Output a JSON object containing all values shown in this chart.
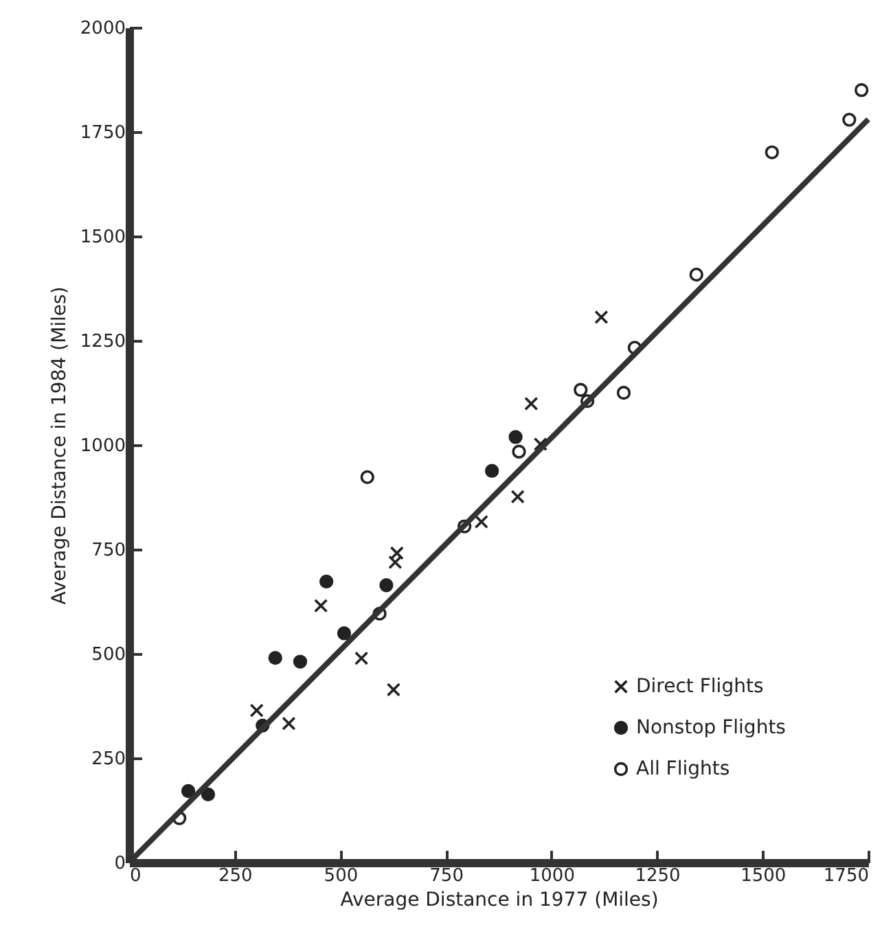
{
  "chart_data": {
    "type": "scatter",
    "xlabel": "Average Distance in 1977 (Miles)",
    "ylabel": "Average Distance in 1984 (Miles)",
    "xlim": [
      0,
      1750
    ],
    "ylim": [
      0,
      2000
    ],
    "xticks": [
      0,
      250,
      500,
      750,
      1000,
      1250,
      1500,
      1750
    ],
    "yticks": [
      0,
      250,
      500,
      750,
      1000,
      1250,
      1500,
      1750,
      2000
    ],
    "grid": false,
    "legend": "bottom right",
    "series": [
      {
        "name": "Direct Flights",
        "color": "#222222",
        "marker": "cross",
        "x": [
          302,
          378,
          454,
          550,
          626,
          630,
          634,
          834,
          920,
          952,
          974,
          1118
        ],
        "values": [
          364,
          333,
          615,
          489,
          414,
          719,
          741,
          816,
          876,
          1099,
          1002,
          1306
        ]
      },
      {
        "name": "Nonstop Flights",
        "color": "#222222",
        "marker": "circle",
        "x": [
          140,
          187,
          316,
          346,
          405,
          467,
          509,
          609,
          859,
          915
        ],
        "values": [
          171,
          163,
          328,
          490,
          481,
          673,
          549,
          664,
          938,
          1019
        ]
      },
      {
        "name": "All Flights",
        "color": "#ffffff",
        "marker": "circle",
        "x": [
          119,
          593,
          564,
          794,
          923,
          1069,
          1085,
          1171,
          1197,
          1343,
          1522,
          1705,
          1734
        ],
        "values": [
          106,
          596,
          923,
          805,
          984,
          1132,
          1105,
          1125,
          1233,
          1408,
          1701,
          1779,
          1850
        ]
      },
      {
        "type": "line",
        "color": "#333333",
        "line_style": "solid",
        "marker": "none",
        "x": [
          0,
          1750
        ],
        "values": [
          0,
          1780
        ]
      }
    ]
  }
}
